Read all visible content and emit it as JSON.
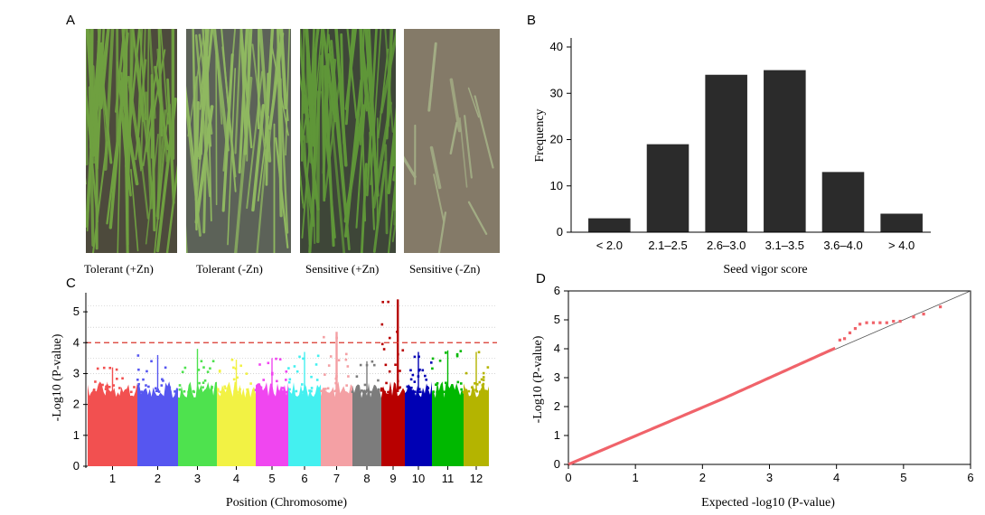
{
  "panels": {
    "a": {
      "letter": "A",
      "photos": [
        {
          "caption": "Tolerant (+Zn)",
          "water": "#4d4a3c",
          "leaf": "#6fa040",
          "density": 1.0
        },
        {
          "caption": "Tolerant (-Zn)",
          "water": "#5c6258",
          "leaf": "#8fb860",
          "density": 0.75
        },
        {
          "caption": "Sensitive (+Zn)",
          "water": "#3e4638",
          "leaf": "#5f9638",
          "density": 1.0
        },
        {
          "caption": "Sensitive (-Zn)",
          "water": "#847a68",
          "leaf": "#a2ac84",
          "density": 0.18
        }
      ]
    },
    "b": {
      "letter": "B"
    },
    "c": {
      "letter": "C"
    },
    "d": {
      "letter": "D"
    }
  },
  "colors": {
    "bar": "#2b2b2b",
    "threshold": "#d9342b",
    "qq_points": "#f0636a",
    "chromosomes": [
      "#f25050",
      "#5656f0",
      "#4ee24e",
      "#f2f244",
      "#f046f0",
      "#44f0f0",
      "#f4a0a4",
      "#7c7c7c",
      "#b80000",
      "#0000b4",
      "#00b800",
      "#b4b400"
    ]
  },
  "chart_data": [
    {
      "id": "B",
      "type": "bar",
      "categories": [
        "< 2.0",
        "2.1–2.5",
        "2.6–3.0",
        "3.1–3.5",
        "3.6–4.0",
        "> 4.0"
      ],
      "values": [
        3,
        19,
        34,
        35,
        13,
        4
      ],
      "xlabel": "Seed vigor score",
      "ylabel": "Frequency",
      "ylim": [
        0,
        40
      ],
      "yticks": [
        0,
        10,
        20,
        30,
        40
      ],
      "grid": false
    },
    {
      "id": "C",
      "type": "scatter",
      "categories": [
        "1",
        "2",
        "3",
        "4",
        "5",
        "6",
        "7",
        "8",
        "9",
        "10",
        "11",
        "12"
      ],
      "xlabel": "Position (Chromosome)",
      "ylabel": "-Log10 (P-value)",
      "ylim": [
        0,
        5.5
      ],
      "yticks": [
        0,
        1,
        2,
        3,
        4,
        5
      ],
      "threshold": 4.0,
      "peaks": [
        3.2,
        3.6,
        3.8,
        3.45,
        3.5,
        3.7,
        4.35,
        3.4,
        5.4,
        3.7,
        3.75,
        3.7
      ],
      "grid": true
    },
    {
      "id": "D",
      "type": "scatter",
      "xlabel": "Expected -log10 (P-value)",
      "ylabel": "-Log10 (P-value)",
      "xlim": [
        0,
        6
      ],
      "ylim": [
        0,
        6
      ],
      "xticks": [
        0,
        1,
        2,
        3,
        4,
        5,
        6
      ],
      "yticks": [
        0,
        1,
        2,
        3,
        4,
        5,
        6
      ],
      "grid": false
    }
  ]
}
